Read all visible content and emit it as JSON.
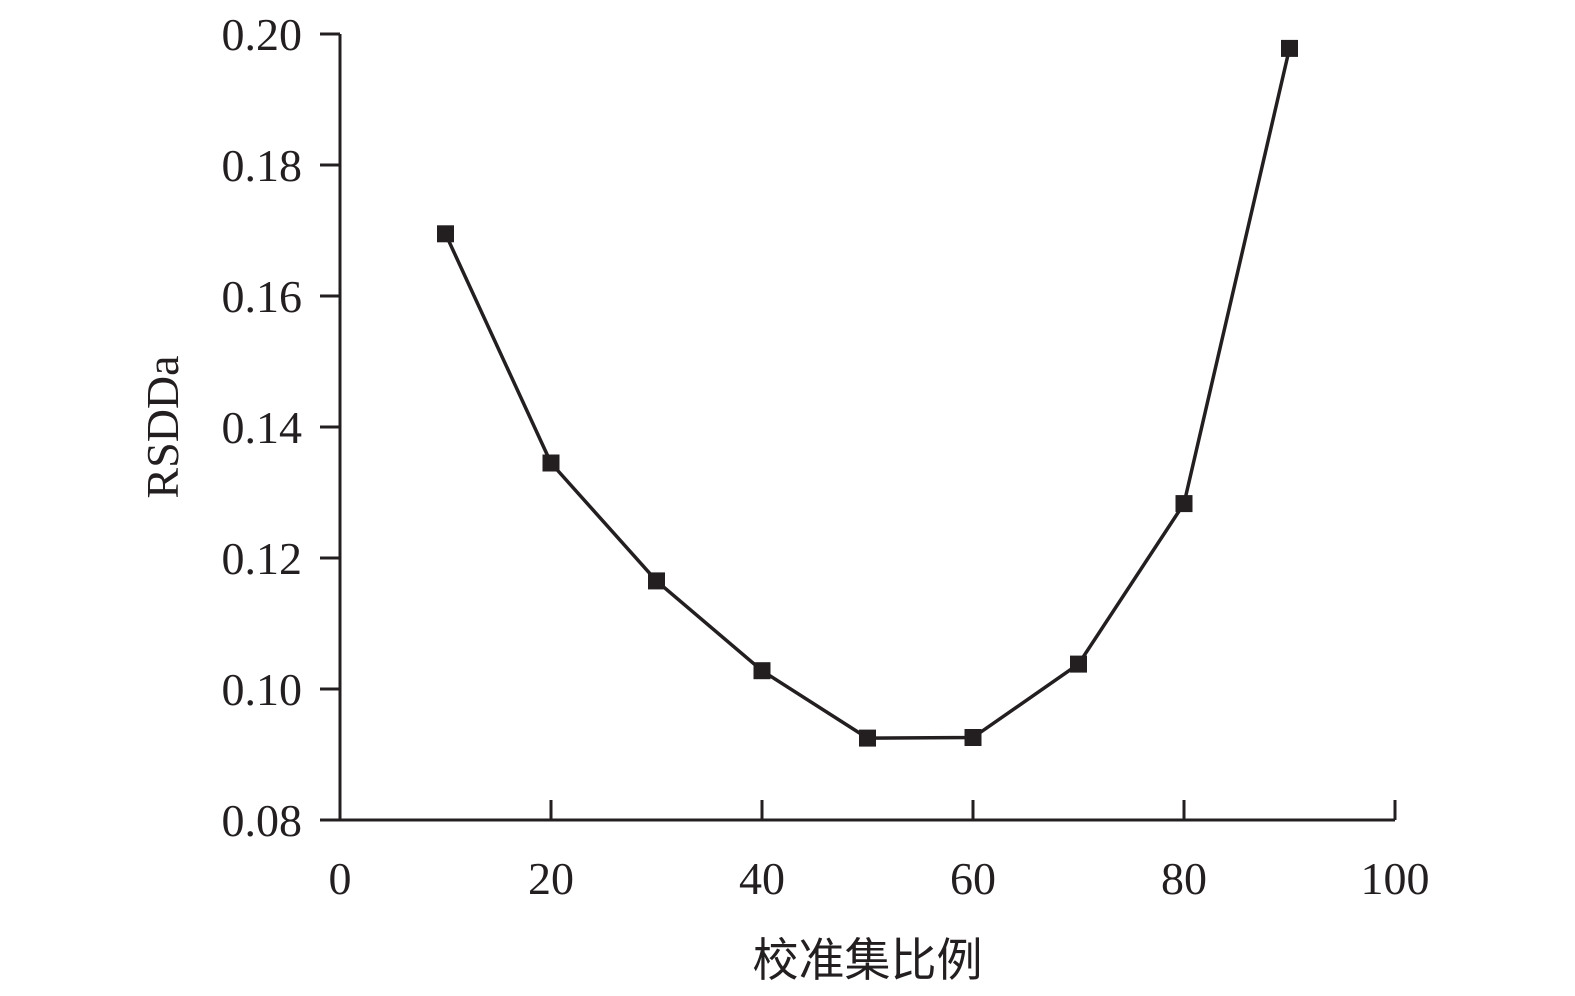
{
  "chart_data": {
    "type": "line",
    "title": "",
    "xlabel": "校准集比例",
    "ylabel": "RSDDa",
    "xlim": [
      0,
      100
    ],
    "ylim": [
      0.08,
      0.2
    ],
    "x_ticks": [
      "0",
      "20",
      "40",
      "60",
      "80",
      "100"
    ],
    "y_ticks": [
      "0.08",
      "0.10",
      "0.12",
      "0.14",
      "0.16",
      "0.18",
      "0.20"
    ],
    "grid": false,
    "legend": "none",
    "marker": "square",
    "line_color": "#231f20",
    "series": [
      {
        "x": [
          10,
          20,
          30,
          40,
          50,
          60,
          70,
          80,
          90
        ],
        "values": [
          0.1695,
          0.1345,
          0.1165,
          0.1028,
          0.0925,
          0.0926,
          0.1038,
          0.1283,
          0.1978
        ]
      }
    ]
  }
}
